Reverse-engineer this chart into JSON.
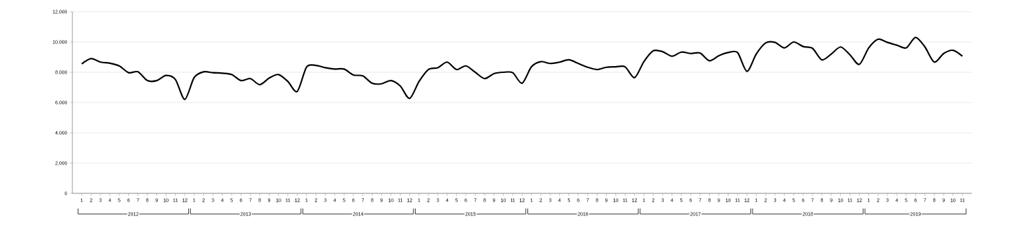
{
  "chart_data": {
    "type": "line",
    "categories": [
      "1",
      "2",
      "3",
      "4",
      "5",
      "6",
      "7",
      "8",
      "9",
      "10",
      "11",
      "12",
      "1",
      "2",
      "3",
      "4",
      "5",
      "6",
      "7",
      "8",
      "9",
      "10",
      "11",
      "12",
      "1",
      "2",
      "3",
      "4",
      "5",
      "6",
      "7",
      "8",
      "9",
      "10",
      "11",
      "12",
      "1",
      "2",
      "3",
      "4",
      "5",
      "6",
      "7",
      "8",
      "9",
      "10",
      "11",
      "12",
      "1",
      "2",
      "3",
      "4",
      "5",
      "6",
      "7",
      "8",
      "9",
      "10",
      "11",
      "12",
      "1",
      "2",
      "3",
      "4",
      "5",
      "6",
      "7",
      "8",
      "9",
      "10",
      "11",
      "12",
      "1",
      "2",
      "3",
      "4",
      "5",
      "6",
      "7",
      "8",
      "9",
      "10",
      "11",
      "12",
      "1",
      "2",
      "3",
      "4",
      "5",
      "6",
      "7",
      "8",
      "9",
      "10",
      "11"
    ],
    "series": [
      {
        "color": "#000000",
        "values": [
          8550,
          8900,
          8670,
          8600,
          8420,
          7970,
          8030,
          7450,
          7450,
          7790,
          7520,
          6210,
          7650,
          8030,
          7970,
          7940,
          7850,
          7450,
          7580,
          7180,
          7610,
          7850,
          7390,
          6730,
          8350,
          8450,
          8300,
          8210,
          8210,
          7820,
          7760,
          7270,
          7240,
          7450,
          7090,
          6270,
          7390,
          8180,
          8300,
          8670,
          8180,
          8420,
          8000,
          7580,
          7910,
          8000,
          7970,
          7270,
          8360,
          8700,
          8580,
          8670,
          8820,
          8580,
          8330,
          8180,
          8330,
          8360,
          8360,
          7640,
          8700,
          9420,
          9360,
          9060,
          9330,
          9240,
          9270,
          8760,
          9090,
          9300,
          9300,
          8060,
          9210,
          9940,
          9970,
          9610,
          10000,
          9700,
          9580,
          8820,
          9200,
          9670,
          9150,
          8520,
          9610,
          10180,
          9970,
          9790,
          9610,
          10300,
          9670,
          8670,
          9240,
          9450,
          9060
        ]
      }
    ],
    "ylim": [
      0,
      12000
    ],
    "yticks": [
      0,
      {
        "value": 2000,
        "label": "2.000"
      },
      {
        "value": 4000,
        "label": "4.000"
      },
      {
        "value": 6000,
        "label": "6.000"
      },
      {
        "value": 8000,
        "label": "8.000"
      },
      {
        "value": 10000,
        "label": "10.000"
      },
      {
        "value": 12000,
        "label": "12.000"
      }
    ],
    "grid": "y",
    "marker": "none",
    "line_style": "solid",
    "annotations": [
      "2012",
      "2013",
      "2014",
      "2015",
      "2016",
      "2017",
      "2018",
      "2019"
    ]
  }
}
